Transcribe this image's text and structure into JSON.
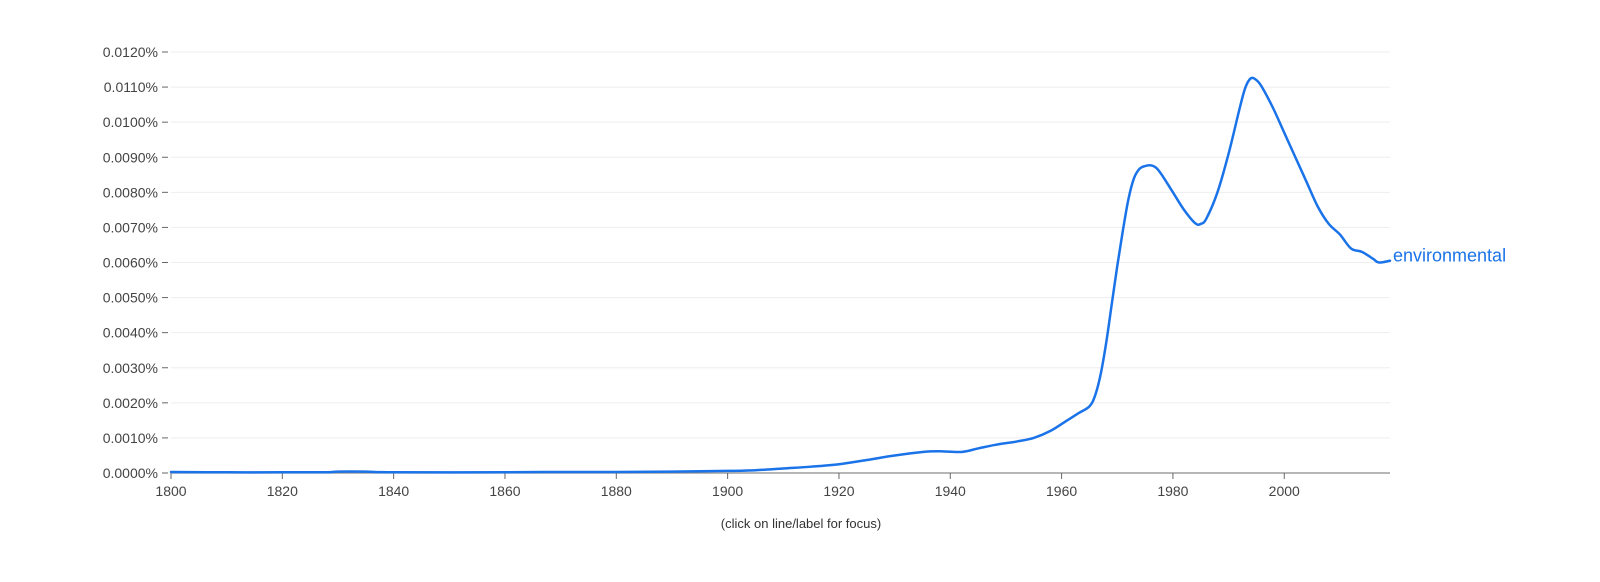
{
  "chart_data": {
    "type": "line",
    "xlabel": "",
    "ylabel": "",
    "xlim": [
      1800,
      2019
    ],
    "ylim": [
      0,
      0.012
    ],
    "x_ticks": [
      1800,
      1820,
      1840,
      1860,
      1880,
      1900,
      1920,
      1940,
      1960,
      1980,
      2000
    ],
    "y_ticks": [
      0,
      0.001,
      0.002,
      0.003,
      0.004,
      0.005,
      0.006,
      0.007,
      0.008,
      0.009,
      0.01,
      0.011,
      0.012
    ],
    "y_tick_labels": [
      "0.0000%",
      "0.0010%",
      "0.0020%",
      "0.0030%",
      "0.0040%",
      "0.0050%",
      "0.0060%",
      "0.0070%",
      "0.0080%",
      "0.0090%",
      "0.0100%",
      "0.0110%",
      "0.0120%"
    ],
    "x_tick_labels": [
      "1800",
      "1820",
      "1840",
      "1860",
      "1880",
      "1900",
      "1920",
      "1940",
      "1960",
      "1980",
      "2000"
    ],
    "grid": true,
    "series": [
      {
        "name": "environmental",
        "color": "#1a73e8",
        "points": [
          [
            1800,
            3e-05
          ],
          [
            1810,
            2e-05
          ],
          [
            1820,
            2e-05
          ],
          [
            1828,
            2e-05
          ],
          [
            1830,
            4e-05
          ],
          [
            1835,
            4e-05
          ],
          [
            1840,
            2e-05
          ],
          [
            1860,
            2e-05
          ],
          [
            1870,
            3e-05
          ],
          [
            1880,
            3e-05
          ],
          [
            1890,
            4e-05
          ],
          [
            1900,
            6e-05
          ],
          [
            1905,
            8e-05
          ],
          [
            1910,
            0.00013
          ],
          [
            1915,
            0.00018
          ],
          [
            1920,
            0.00025
          ],
          [
            1925,
            0.00037
          ],
          [
            1930,
            0.0005
          ],
          [
            1935,
            0.0006
          ],
          [
            1938,
            0.00062
          ],
          [
            1942,
            0.0006
          ],
          [
            1945,
            0.0007
          ],
          [
            1948,
            0.0008
          ],
          [
            1952,
            0.0009
          ],
          [
            1955,
            0.001
          ],
          [
            1958,
            0.0012
          ],
          [
            1961,
            0.0015
          ],
          [
            1963,
            0.0017
          ],
          [
            1965,
            0.0019
          ],
          [
            1966,
            0.0022
          ],
          [
            1967,
            0.0028
          ],
          [
            1968,
            0.0037
          ],
          [
            1969,
            0.0048
          ],
          [
            1970,
            0.0059
          ],
          [
            1971,
            0.0069
          ],
          [
            1972,
            0.0078
          ],
          [
            1973,
            0.0084
          ],
          [
            1974,
            0.00867
          ],
          [
            1975,
            0.00875
          ],
          [
            1976,
            0.00877
          ],
          [
            1977,
            0.0087
          ],
          [
            1978,
            0.0085
          ],
          [
            1980,
            0.008
          ],
          [
            1982,
            0.0075
          ],
          [
            1984,
            0.00712
          ],
          [
            1985,
            0.0071
          ],
          [
            1986,
            0.00725
          ],
          [
            1988,
            0.008
          ],
          [
            1990,
            0.0091
          ],
          [
            1992,
            0.0104
          ],
          [
            1993,
            0.01098
          ],
          [
            1994,
            0.01125
          ],
          [
            1995,
            0.0112
          ],
          [
            1996,
            0.011
          ],
          [
            1998,
            0.0104
          ],
          [
            2000,
            0.0097
          ],
          [
            2002,
            0.009
          ],
          [
            2004,
            0.0083
          ],
          [
            2006,
            0.0076
          ],
          [
            2008,
            0.0071
          ],
          [
            2010,
            0.0068
          ],
          [
            2012,
            0.0064
          ],
          [
            2014,
            0.0063
          ],
          [
            2016,
            0.0061
          ],
          [
            2017,
            0.006
          ],
          [
            2019,
            0.00605
          ]
        ]
      }
    ],
    "footnote": "(click on line/label for focus)"
  }
}
